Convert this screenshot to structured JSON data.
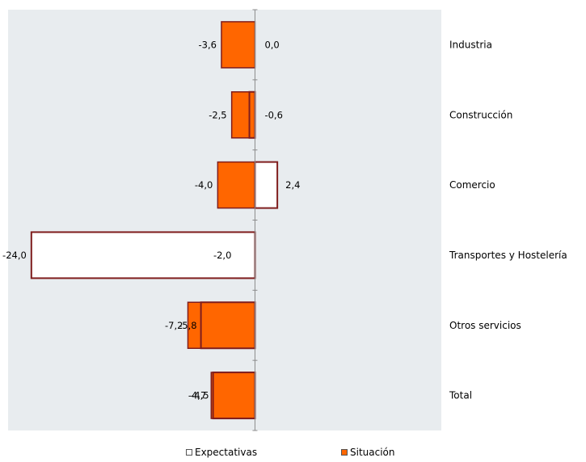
{
  "chart_data": {
    "type": "bar",
    "orientation": "horizontal",
    "categories": [
      "Industria",
      "Construcción",
      "Comercio",
      "Transportes y Hostelería",
      "Otros servicios",
      "Total"
    ],
    "series": [
      {
        "name": "Expectativas",
        "values": [
          0.0,
          -0.6,
          2.4,
          -24.0,
          -5.8,
          -4.5
        ],
        "value_labels": [
          "0,0",
          "-0,6",
          "2,4",
          "-24,0",
          "-5,8",
          "-4,5"
        ]
      },
      {
        "name": "Situación",
        "values": [
          -3.6,
          -2.5,
          -4.0,
          -2.0,
          -7.2,
          -4.7
        ],
        "value_labels": [
          "-3,6",
          "-2,5",
          "-4,0",
          "-2,0",
          "-7,2",
          "-4,7"
        ]
      }
    ],
    "xlim": [
      -26.5,
      20
    ],
    "grid": false,
    "legend_position": "bottom",
    "colors": {
      "plot_background": "#e8ecef",
      "situacion_fill": "#ff6600",
      "bar_border": "#7f1d1d",
      "expectativas_fill": "#ffffff",
      "axis": "#8c8c8c"
    }
  },
  "legend": {
    "expectativas_label": "Expectativas",
    "situacion_label": "Situación"
  }
}
